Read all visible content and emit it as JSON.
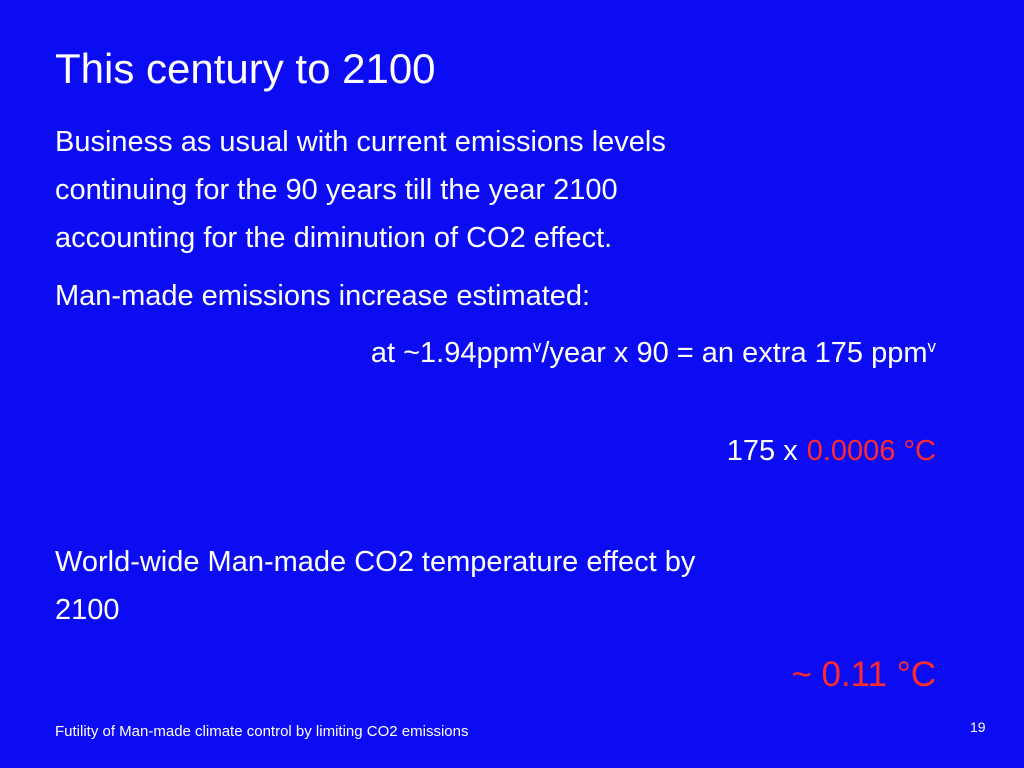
{
  "title": "This century to 2100",
  "paragraph_1": {
    "lines": [
      "Business as usual with current emissions levels",
      "continuing for the 90 years till the year 2100",
      "accounting for the diminution of CO2 effect."
    ]
  },
  "paragraph_2": "Man-made emissions increase estimated:",
  "equation_1": {
    "part_1": "at ~1.94ppm",
    "sup_1": "v",
    "part_2": "/year x 90 = an extra 175 ppm",
    "sup_2": "v"
  },
  "equation_2": {
    "factor": "175 x",
    "highlight": "0.0006 °C"
  },
  "paragraph_3": {
    "lines": [
      "World-wide Man-made CO2 temperature effect by",
      "2100"
    ]
  },
  "result": "~ 0.11 °C",
  "footer": "Futility of Man-made climate control by limiting CO2 emissions",
  "slide_number": "19"
}
